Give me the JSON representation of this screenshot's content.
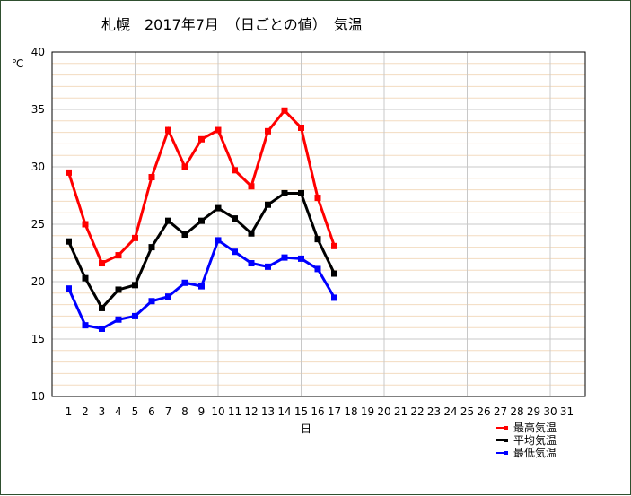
{
  "chart_data": {
    "type": "line",
    "title": "札幌　2017年7月　（日ごとの値）　気温",
    "ylabel": "℃",
    "xlabel": "日",
    "xlim": [
      1,
      31
    ],
    "ylim": [
      10,
      40
    ],
    "x_ticks": [
      1,
      2,
      3,
      4,
      5,
      6,
      7,
      8,
      9,
      10,
      11,
      12,
      13,
      14,
      15,
      16,
      17,
      18,
      19,
      20,
      21,
      22,
      23,
      24,
      25,
      26,
      27,
      28,
      29,
      30,
      31
    ],
    "y_ticks": [
      10,
      15,
      20,
      25,
      30,
      35,
      40
    ],
    "grid": true,
    "legend": "bottom-right",
    "series": [
      {
        "name": "最高気温",
        "color": "#ff0000",
        "x": [
          1,
          2,
          3,
          4,
          5,
          6,
          7,
          8,
          9,
          10,
          11,
          12,
          13,
          14,
          15,
          16,
          17
        ],
        "values": [
          29.5,
          25.0,
          21.6,
          22.3,
          23.8,
          29.1,
          33.2,
          30.0,
          32.4,
          33.2,
          29.7,
          28.3,
          33.1,
          34.9,
          33.4,
          27.3,
          23.1
        ]
      },
      {
        "name": "平均気温",
        "color": "#000000",
        "x": [
          1,
          2,
          3,
          4,
          5,
          6,
          7,
          8,
          9,
          10,
          11,
          12,
          13,
          14,
          15,
          16,
          17
        ],
        "values": [
          23.5,
          20.3,
          17.7,
          19.3,
          19.7,
          23.0,
          25.3,
          24.1,
          25.3,
          26.4,
          25.5,
          24.2,
          26.7,
          27.7,
          27.7,
          23.7,
          20.7
        ]
      },
      {
        "name": "最低気温",
        "color": "#0000ff",
        "x": [
          1,
          2,
          3,
          4,
          5,
          6,
          7,
          8,
          9,
          10,
          11,
          12,
          13,
          14,
          15,
          16,
          17
        ],
        "values": [
          19.4,
          16.2,
          15.9,
          16.7,
          17.0,
          18.3,
          18.7,
          19.9,
          19.6,
          23.6,
          22.6,
          21.6,
          21.3,
          22.1,
          22.0,
          21.1,
          18.6
        ]
      }
    ]
  }
}
